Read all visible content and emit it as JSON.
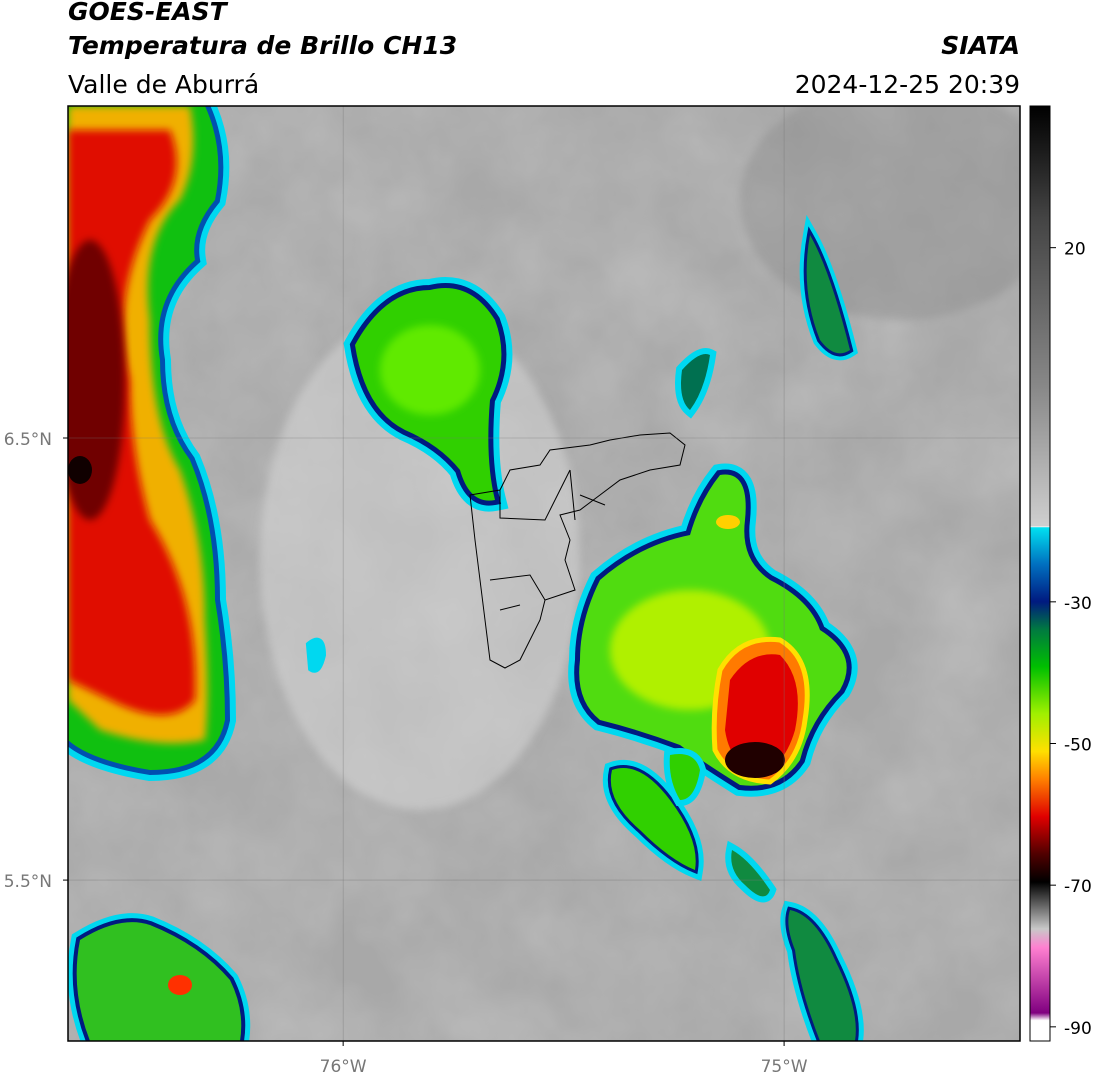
{
  "chart_data": {
    "type": "map",
    "title": "GOES-EAST",
    "subtitle": "Temperatura de Brillo CH13",
    "region": "Valle de Aburrá",
    "source": "SIATA",
    "timestamp": "2024-12-25 20:39",
    "xlim": [
      -76.624,
      -74.465
    ],
    "ylim": [
      5.136,
      7.251
    ],
    "xticks": [
      {
        "value": -76,
        "label": "76°W"
      },
      {
        "value": -75,
        "label": "75°W"
      }
    ],
    "yticks": [
      {
        "value": 6.5,
        "label": "6.5°N"
      },
      {
        "value": 5.5,
        "label": "5.5°N"
      }
    ],
    "grid": true,
    "colorbar": {
      "lim": [
        -92,
        40
      ],
      "ticks": [
        20,
        -30,
        -50,
        -70,
        -90
      ]
    }
  }
}
